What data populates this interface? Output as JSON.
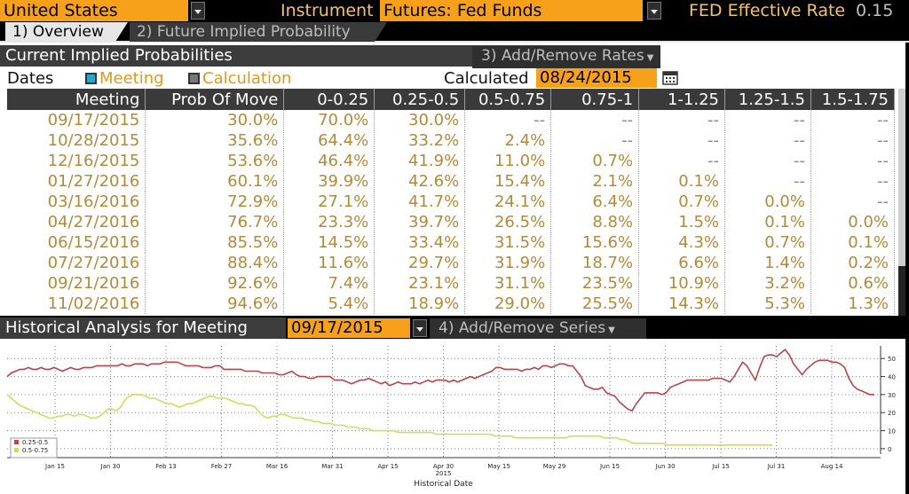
{
  "topbar": {
    "country": "United States",
    "instrument_label": "Instrument",
    "instrument_value": "Futures: Fed Funds",
    "fed_rate_label": "FED Effective Rate",
    "fed_rate_value": "0.15"
  },
  "tabs": [
    {
      "label": "1) Overview",
      "active": true
    },
    {
      "label": "2) Future Implied Probability",
      "active": false
    }
  ],
  "current_probs": {
    "title": "Current Implied Probabilities",
    "add_remove_rates": "3) Add/Remove Rates",
    "dates_label": "Dates",
    "opt_meeting": "Meeting",
    "opt_calculation": "Calculation",
    "calculated_label": "Calculated",
    "calculated_date": "08/24/2015"
  },
  "table": {
    "headers": [
      "Meeting",
      "Prob Of Move",
      "0-0.25",
      "0.25-0.5",
      "0.5-0.75",
      "0.75-1",
      "1-1.25",
      "1.25-1.5",
      "1.5-1.75"
    ],
    "rows": [
      [
        "09/17/2015",
        "30.0%",
        "70.0%",
        "30.0%",
        "--",
        "--",
        "--",
        "--",
        "--"
      ],
      [
        "10/28/2015",
        "35.6%",
        "64.4%",
        "33.2%",
        "2.4%",
        "--",
        "--",
        "--",
        "--"
      ],
      [
        "12/16/2015",
        "53.6%",
        "46.4%",
        "41.9%",
        "11.0%",
        "0.7%",
        "--",
        "--",
        "--"
      ],
      [
        "01/27/2016",
        "60.1%",
        "39.9%",
        "42.6%",
        "15.4%",
        "2.1%",
        "0.1%",
        "--",
        "--"
      ],
      [
        "03/16/2016",
        "72.9%",
        "27.1%",
        "41.7%",
        "24.1%",
        "6.4%",
        "0.7%",
        "0.0%",
        "--"
      ],
      [
        "04/27/2016",
        "76.7%",
        "23.3%",
        "39.7%",
        "26.5%",
        "8.8%",
        "1.5%",
        "0.1%",
        "0.0%"
      ],
      [
        "06/15/2016",
        "85.5%",
        "14.5%",
        "33.4%",
        "31.5%",
        "15.6%",
        "4.3%",
        "0.7%",
        "0.1%"
      ],
      [
        "07/27/2016",
        "88.4%",
        "11.6%",
        "29.7%",
        "31.9%",
        "18.7%",
        "6.6%",
        "1.4%",
        "0.2%"
      ],
      [
        "09/21/2016",
        "92.6%",
        "7.4%",
        "23.1%",
        "31.1%",
        "23.5%",
        "10.9%",
        "3.2%",
        "0.6%"
      ],
      [
        "11/02/2016",
        "94.6%",
        "5.4%",
        "18.9%",
        "29.0%",
        "25.5%",
        "14.3%",
        "5.3%",
        "1.3%"
      ]
    ]
  },
  "historical": {
    "title": "Historical Analysis for Meeting",
    "meeting_date": "09/17/2015",
    "add_remove_series": "4) Add/Remove Series"
  },
  "chart_data": {
    "type": "line",
    "xlabel": "Historical Date",
    "year_label": "2015",
    "x_ticks": [
      "Jan 15",
      "Jan 30",
      "Feb 13",
      "Feb 27",
      "Mar 16",
      "Mar 31",
      "Apr 15",
      "Apr 30",
      "May 15",
      "May 29",
      "Jun 15",
      "Jun 30",
      "Jul 15",
      "Jul 31",
      "Aug 14"
    ],
    "y_ticks": [
      "50",
      "40",
      "30",
      "20",
      "10",
      "0"
    ],
    "ylim": [
      -3,
      57
    ],
    "grid": true,
    "legend_position": "bottom-left",
    "series": [
      {
        "name": "0.25-0.5",
        "color": "#b5474b",
        "values": [
          40,
          42,
          43,
          44,
          44,
          45,
          44,
          44,
          45,
          44,
          44,
          45,
          44,
          43,
          44,
          45,
          44,
          44,
          45,
          45,
          45,
          46,
          46,
          46,
          46,
          46,
          46,
          47,
          46,
          46,
          47,
          47,
          47,
          46,
          47,
          47,
          47,
          48,
          48,
          48,
          48,
          47,
          46,
          46,
          46,
          46,
          45,
          45,
          45,
          46,
          46,
          44,
          44,
          44,
          44,
          44,
          43,
          43,
          43,
          43,
          42,
          42,
          42,
          42,
          41,
          41,
          42,
          43,
          41,
          40,
          40,
          39,
          39,
          40,
          40,
          40,
          40,
          38,
          38,
          38,
          37,
          36,
          37,
          38,
          38,
          39,
          38,
          37,
          36,
          37,
          35,
          36,
          37,
          36,
          36,
          36,
          37,
          36,
          37,
          38,
          37,
          38,
          38,
          38,
          37,
          38,
          37,
          38,
          39,
          40,
          39,
          40,
          41,
          42,
          43,
          45,
          45,
          44,
          44,
          44,
          44,
          43,
          44,
          44,
          45,
          44,
          46,
          46,
          45,
          46,
          47,
          47,
          46,
          46,
          43,
          40,
          35,
          34,
          33,
          33,
          34,
          31,
          30,
          29,
          26,
          24,
          22,
          21,
          25,
          28,
          31,
          31,
          31,
          31,
          30,
          31,
          34,
          35,
          36,
          37,
          38,
          38,
          38,
          38,
          38,
          38,
          39,
          39,
          39,
          38,
          37,
          40,
          44,
          48,
          46,
          42,
          38,
          45,
          51,
          52,
          52,
          51,
          53,
          55,
          52,
          47,
          44,
          41,
          44,
          46,
          48,
          49,
          49,
          49,
          48,
          48,
          47,
          45,
          39,
          35,
          33,
          32,
          31,
          30,
          30
        ]
      },
      {
        "name": "0.5-0.75",
        "color": "#c9e05a",
        "values": [
          30,
          28,
          26,
          24,
          23,
          22,
          21,
          20,
          19,
          18,
          17,
          17,
          18,
          18,
          19,
          19,
          18,
          19,
          19,
          18,
          17,
          17,
          18,
          20,
          22,
          22,
          21,
          23,
          27,
          29,
          30,
          30,
          30,
          29,
          28,
          28,
          27,
          26,
          25,
          25,
          24,
          23,
          24,
          25,
          25,
          26,
          27,
          28,
          29,
          29,
          28,
          28,
          28,
          27,
          26,
          25,
          25,
          24,
          24,
          23,
          20,
          18,
          17,
          18,
          18,
          19,
          19,
          18,
          17,
          17,
          17,
          16,
          16,
          15,
          15,
          14,
          14,
          14,
          13,
          13,
          13,
          12,
          12,
          12,
          11,
          11,
          11,
          10,
          10,
          10,
          10,
          10,
          10,
          9,
          9,
          9,
          9,
          9,
          9,
          9,
          9,
          9,
          8,
          8,
          8,
          8,
          8,
          8,
          8,
          8,
          8,
          8,
          8,
          8,
          8,
          8,
          7,
          7,
          7,
          7,
          7,
          6,
          6,
          6,
          6,
          6,
          6,
          6,
          6,
          6,
          6,
          6,
          6,
          6,
          7,
          7,
          7,
          7,
          7,
          7,
          7,
          7,
          6,
          6,
          6,
          6,
          5,
          5,
          4,
          3,
          3,
          3,
          3,
          3,
          3,
          3,
          3,
          2,
          2,
          2,
          2,
          2,
          2,
          2,
          2,
          2,
          2,
          2,
          2,
          2,
          2,
          2,
          2,
          2,
          2,
          2,
          2,
          2,
          2,
          2,
          2,
          2,
          2
        ]
      }
    ]
  }
}
